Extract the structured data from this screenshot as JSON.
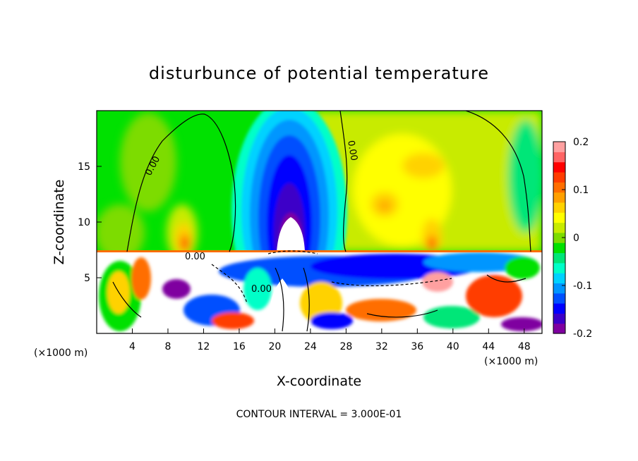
{
  "chart_data": {
    "type": "heatmap",
    "title": "disturbunce of potential temperature",
    "xlabel": "X-coordinate",
    "ylabel": "Z-coordinate",
    "x_unit_left": "(×1000 m)",
    "x_unit_right": "(×1000 m)",
    "xlim": [
      0,
      50
    ],
    "ylim": [
      0,
      20
    ],
    "x_ticks": [
      "4",
      "8",
      "12",
      "16",
      "20",
      "24",
      "28",
      "32",
      "36",
      "40",
      "44",
      "48"
    ],
    "y_ticks": [
      "5",
      "10",
      "15"
    ],
    "colorbar": {
      "min": -0.2,
      "max": 0.2,
      "tick_labels": [
        "0.2",
        "0.1",
        "0",
        "-0.1",
        "-0.2"
      ],
      "colors": [
        "#7f00a0",
        "#3c00c8",
        "#0000ff",
        "#0050ff",
        "#0096ff",
        "#00d2ff",
        "#00ffc8",
        "#00e678",
        "#00e100",
        "#7ddc00",
        "#c8eb00",
        "#ffff00",
        "#ffd200",
        "#ffa000",
        "#ff6e00",
        "#ff3c00",
        "#ff0000",
        "#ff6464",
        "#ffa0a0"
      ]
    },
    "contour_label": "0.00",
    "footer": "CONTOUR INTERVAL = 3.000E-01",
    "features": {
      "interface_z": 7.5,
      "cold_column_center_x": 21.5,
      "cold_column_top_z": 19
    }
  }
}
